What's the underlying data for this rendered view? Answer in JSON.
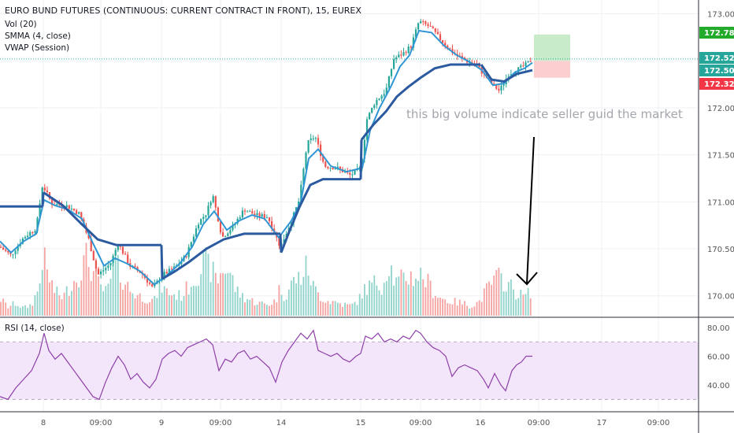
{
  "header": {
    "symbol": "EURO BUND FUTURES (CONTINUOUS: CURRENT CONTRACT IN FRONT), 15, EUREX",
    "indicators": [
      "Vol (20)",
      "SMMA (4, close)",
      "VWAP (Session)"
    ],
    "rsi_label": "RSI (14, close)"
  },
  "annotation": {
    "text": "this big volume indicate seller guid the market"
  },
  "colors": {
    "up": "#26a69a",
    "down": "#ef5350",
    "smma": "#2f96d3",
    "vwap": "#2b5aa0",
    "rsi": "#8e3fa8",
    "rsi_band": "#f3e6fb",
    "target": "#c8ecc9",
    "stop": "#fbcfd0",
    "last_price": "#26a69a",
    "target_label": "#22ab2b",
    "stop_label": "#f23645"
  },
  "chart_data": [
    {
      "type": "line",
      "description_series": [
        "price",
        "smma",
        "vwap",
        "volume"
      ],
      "price_axis": {
        "ticks": [
          "173.00",
          "172.50",
          "172.00",
          "171.50",
          "171.00",
          "170.50",
          "170.00"
        ],
        "ylim": [
          169.78,
          173.08
        ]
      },
      "time_axis": {
        "ticks": [
          "8",
          "09:00",
          "9",
          "09:00",
          "14",
          "15",
          "09:00",
          "16",
          "09:00",
          "17",
          "09:00"
        ]
      },
      "price_labels": [
        {
          "name": "target",
          "value": "172.78"
        },
        {
          "name": "current-high",
          "value": "172.52"
        },
        {
          "name": "last",
          "value": "172.50"
        },
        {
          "name": "stop",
          "value": "172.32"
        }
      ],
      "position": {
        "entry": 172.5,
        "target": 172.78,
        "stop": 172.32
      },
      "price_path": [
        [
          0,
          170.52
        ],
        [
          14,
          170.43
        ],
        [
          30,
          170.62
        ],
        [
          46,
          170.72
        ],
        [
          54,
          171.18
        ],
        [
          66,
          170.98
        ],
        [
          84,
          170.96
        ],
        [
          100,
          170.88
        ],
        [
          112,
          170.62
        ],
        [
          124,
          170.22
        ],
        [
          140,
          170.34
        ],
        [
          150,
          170.56
        ],
        [
          165,
          170.32
        ],
        [
          180,
          170.24
        ],
        [
          194,
          170.08
        ],
        [
          206,
          170.22
        ],
        [
          222,
          170.3
        ],
        [
          236,
          170.42
        ],
        [
          252,
          170.78
        ],
        [
          262,
          170.88
        ],
        [
          270,
          171.08
        ],
        [
          282,
          170.62
        ],
        [
          296,
          170.74
        ],
        [
          310,
          170.92
        ],
        [
          324,
          170.86
        ],
        [
          340,
          170.84
        ],
        [
          356,
          170.52
        ],
        [
          372,
          170.84
        ],
        [
          380,
          171.02
        ],
        [
          390,
          171.62
        ],
        [
          400,
          171.7
        ],
        [
          412,
          171.38
        ],
        [
          428,
          171.36
        ],
        [
          445,
          171.28
        ],
        [
          458,
          171.36
        ],
        [
          466,
          171.88
        ],
        [
          476,
          172.06
        ],
        [
          490,
          172.18
        ],
        [
          500,
          172.52
        ],
        [
          512,
          172.58
        ],
        [
          522,
          172.66
        ],
        [
          532,
          172.92
        ],
        [
          546,
          172.86
        ],
        [
          560,
          172.72
        ],
        [
          576,
          172.58
        ],
        [
          592,
          172.5
        ],
        [
          604,
          172.46
        ],
        [
          614,
          172.36
        ],
        [
          624,
          172.26
        ],
        [
          634,
          172.18
        ],
        [
          646,
          172.36
        ],
        [
          660,
          172.42
        ],
        [
          668,
          172.46
        ],
        [
          676,
          172.52
        ]
      ],
      "smma": [
        [
          0,
          170.58
        ],
        [
          14,
          170.46
        ],
        [
          30,
          170.58
        ],
        [
          46,
          170.66
        ],
        [
          56,
          171.02
        ],
        [
          70,
          170.96
        ],
        [
          86,
          170.92
        ],
        [
          104,
          170.82
        ],
        [
          118,
          170.56
        ],
        [
          132,
          170.32
        ],
        [
          146,
          170.4
        ],
        [
          162,
          170.34
        ],
        [
          178,
          170.26
        ],
        [
          196,
          170.12
        ],
        [
          212,
          170.22
        ],
        [
          228,
          170.34
        ],
        [
          244,
          170.52
        ],
        [
          258,
          170.76
        ],
        [
          272,
          170.9
        ],
        [
          288,
          170.7
        ],
        [
          304,
          170.8
        ],
        [
          320,
          170.86
        ],
        [
          336,
          170.82
        ],
        [
          354,
          170.62
        ],
        [
          370,
          170.8
        ],
        [
          382,
          171.0
        ],
        [
          392,
          171.46
        ],
        [
          404,
          171.56
        ],
        [
          420,
          171.38
        ],
        [
          440,
          171.32
        ],
        [
          460,
          171.36
        ],
        [
          470,
          171.76
        ],
        [
          482,
          172.0
        ],
        [
          496,
          172.22
        ],
        [
          508,
          172.44
        ],
        [
          520,
          172.56
        ],
        [
          532,
          172.82
        ],
        [
          548,
          172.8
        ],
        [
          564,
          172.66
        ],
        [
          580,
          172.56
        ],
        [
          598,
          172.48
        ],
        [
          612,
          172.4
        ],
        [
          626,
          172.24
        ],
        [
          640,
          172.26
        ],
        [
          654,
          172.38
        ],
        [
          666,
          172.42
        ],
        [
          676,
          172.48
        ]
      ],
      "vwap_segments": [
        [
          [
            0,
            170.95
          ],
          [
            54,
            170.95
          ]
        ],
        [
          [
            55,
            171.1
          ],
          [
            80,
            170.96
          ],
          [
            104,
            170.76
          ],
          [
            124,
            170.6
          ],
          [
            148,
            170.54
          ],
          [
            180,
            170.54
          ],
          [
            205,
            170.54
          ]
        ],
        [
          [
            206,
            170.18
          ],
          [
            222,
            170.26
          ],
          [
            240,
            170.36
          ],
          [
            262,
            170.5
          ],
          [
            284,
            170.6
          ],
          [
            310,
            170.66
          ],
          [
            340,
            170.66
          ],
          [
            356,
            170.66
          ]
        ],
        [
          [
            357,
            170.46
          ],
          [
            368,
            170.7
          ],
          [
            380,
            170.94
          ],
          [
            394,
            171.18
          ],
          [
            410,
            171.24
          ],
          [
            440,
            171.24
          ],
          [
            458,
            171.24
          ]
        ],
        [
          [
            459,
            171.66
          ],
          [
            474,
            171.82
          ],
          [
            490,
            171.96
          ],
          [
            504,
            172.12
          ],
          [
            518,
            172.22
          ],
          [
            534,
            172.32
          ],
          [
            552,
            172.42
          ],
          [
            572,
            172.46
          ],
          [
            610,
            172.46
          ]
        ],
        [
          [
            611,
            172.46
          ],
          [
            624,
            172.3
          ],
          [
            640,
            172.28
          ],
          [
            656,
            172.36
          ],
          [
            676,
            172.4
          ]
        ]
      ],
      "volume_profile": [
        [
          0,
          28
        ],
        [
          10,
          14
        ],
        [
          20,
          20
        ],
        [
          30,
          12
        ],
        [
          40,
          18
        ],
        [
          50,
          46
        ],
        [
          54,
          100
        ],
        [
          60,
          68
        ],
        [
          70,
          38
        ],
        [
          80,
          30
        ],
        [
          90,
          50
        ],
        [
          100,
          66
        ],
        [
          110,
          94
        ],
        [
          118,
          70
        ],
        [
          126,
          48
        ],
        [
          136,
          36
        ],
        [
          146,
          84
        ],
        [
          156,
          60
        ],
        [
          166,
          40
        ],
        [
          176,
          32
        ],
        [
          186,
          28
        ],
        [
          196,
          24
        ],
        [
          204,
          50
        ],
        [
          210,
          40
        ],
        [
          220,
          34
        ],
        [
          230,
          32
        ],
        [
          240,
          48
        ],
        [
          250,
          66
        ],
        [
          260,
          86
        ],
        [
          268,
          74
        ],
        [
          276,
          56
        ],
        [
          284,
          78
        ],
        [
          292,
          70
        ],
        [
          300,
          40
        ],
        [
          310,
          30
        ],
        [
          320,
          24
        ],
        [
          330,
          20
        ],
        [
          340,
          18
        ],
        [
          350,
          24
        ],
        [
          356,
          46
        ],
        [
          362,
          30
        ],
        [
          372,
          56
        ],
        [
          382,
          62
        ],
        [
          390,
          80
        ],
        [
          398,
          46
        ],
        [
          406,
          32
        ],
        [
          416,
          24
        ],
        [
          426,
          22
        ],
        [
          436,
          18
        ],
        [
          446,
          16
        ],
        [
          456,
          26
        ],
        [
          462,
          42
        ],
        [
          470,
          48
        ],
        [
          478,
          54
        ],
        [
          486,
          48
        ],
        [
          494,
          88
        ],
        [
          502,
          52
        ],
        [
          510,
          58
        ],
        [
          518,
          64
        ],
        [
          526,
          62
        ],
        [
          534,
          66
        ],
        [
          542,
          56
        ],
        [
          550,
          40
        ],
        [
          558,
          30
        ],
        [
          568,
          24
        ],
        [
          578,
          22
        ],
        [
          588,
          20
        ],
        [
          598,
          16
        ],
        [
          608,
          22
        ],
        [
          616,
          38
        ],
        [
          624,
          52
        ],
        [
          632,
          62
        ],
        [
          640,
          56
        ],
        [
          648,
          48
        ],
        [
          656,
          36
        ],
        [
          664,
          32
        ],
        [
          670,
          34
        ],
        [
          676,
          44
        ]
      ]
    },
    {
      "type": "line",
      "name": "RSI (14, close)",
      "y_axis": {
        "ticks": [
          "80.00",
          "60.00",
          "40.00"
        ],
        "ylim": [
          22,
          86
        ]
      },
      "bands": [
        70,
        30
      ],
      "values": [
        [
          0,
          32
        ],
        [
          10,
          30
        ],
        [
          20,
          38
        ],
        [
          30,
          44
        ],
        [
          40,
          50
        ],
        [
          50,
          62
        ],
        [
          56,
          76
        ],
        [
          62,
          64
        ],
        [
          70,
          58
        ],
        [
          78,
          62
        ],
        [
          86,
          56
        ],
        [
          94,
          50
        ],
        [
          102,
          44
        ],
        [
          110,
          38
        ],
        [
          118,
          32
        ],
        [
          126,
          30
        ],
        [
          134,
          42
        ],
        [
          142,
          52
        ],
        [
          150,
          60
        ],
        [
          158,
          54
        ],
        [
          166,
          44
        ],
        [
          174,
          48
        ],
        [
          182,
          42
        ],
        [
          190,
          38
        ],
        [
          198,
          44
        ],
        [
          206,
          58
        ],
        [
          214,
          62
        ],
        [
          222,
          64
        ],
        [
          230,
          60
        ],
        [
          238,
          66
        ],
        [
          246,
          68
        ],
        [
          254,
          70
        ],
        [
          262,
          72
        ],
        [
          270,
          68
        ],
        [
          278,
          50
        ],
        [
          286,
          58
        ],
        [
          294,
          56
        ],
        [
          302,
          62
        ],
        [
          310,
          64
        ],
        [
          318,
          58
        ],
        [
          326,
          60
        ],
        [
          334,
          56
        ],
        [
          342,
          52
        ],
        [
          350,
          42
        ],
        [
          358,
          56
        ],
        [
          366,
          64
        ],
        [
          374,
          70
        ],
        [
          382,
          76
        ],
        [
          390,
          72
        ],
        [
          398,
          78
        ],
        [
          404,
          64
        ],
        [
          412,
          62
        ],
        [
          420,
          60
        ],
        [
          428,
          62
        ],
        [
          436,
          58
        ],
        [
          444,
          56
        ],
        [
          452,
          60
        ],
        [
          458,
          62
        ],
        [
          464,
          74
        ],
        [
          472,
          72
        ],
        [
          480,
          76
        ],
        [
          488,
          70
        ],
        [
          496,
          72
        ],
        [
          504,
          70
        ],
        [
          512,
          74
        ],
        [
          520,
          72
        ],
        [
          528,
          78
        ],
        [
          534,
          76
        ],
        [
          542,
          70
        ],
        [
          550,
          66
        ],
        [
          558,
          64
        ],
        [
          566,
          60
        ],
        [
          574,
          46
        ],
        [
          582,
          52
        ],
        [
          590,
          54
        ],
        [
          598,
          52
        ],
        [
          606,
          50
        ],
        [
          614,
          44
        ],
        [
          620,
          38
        ],
        [
          628,
          48
        ],
        [
          636,
          40
        ],
        [
          642,
          36
        ],
        [
          650,
          50
        ],
        [
          656,
          54
        ],
        [
          662,
          56
        ],
        [
          668,
          60
        ],
        [
          676,
          60
        ]
      ]
    }
  ]
}
